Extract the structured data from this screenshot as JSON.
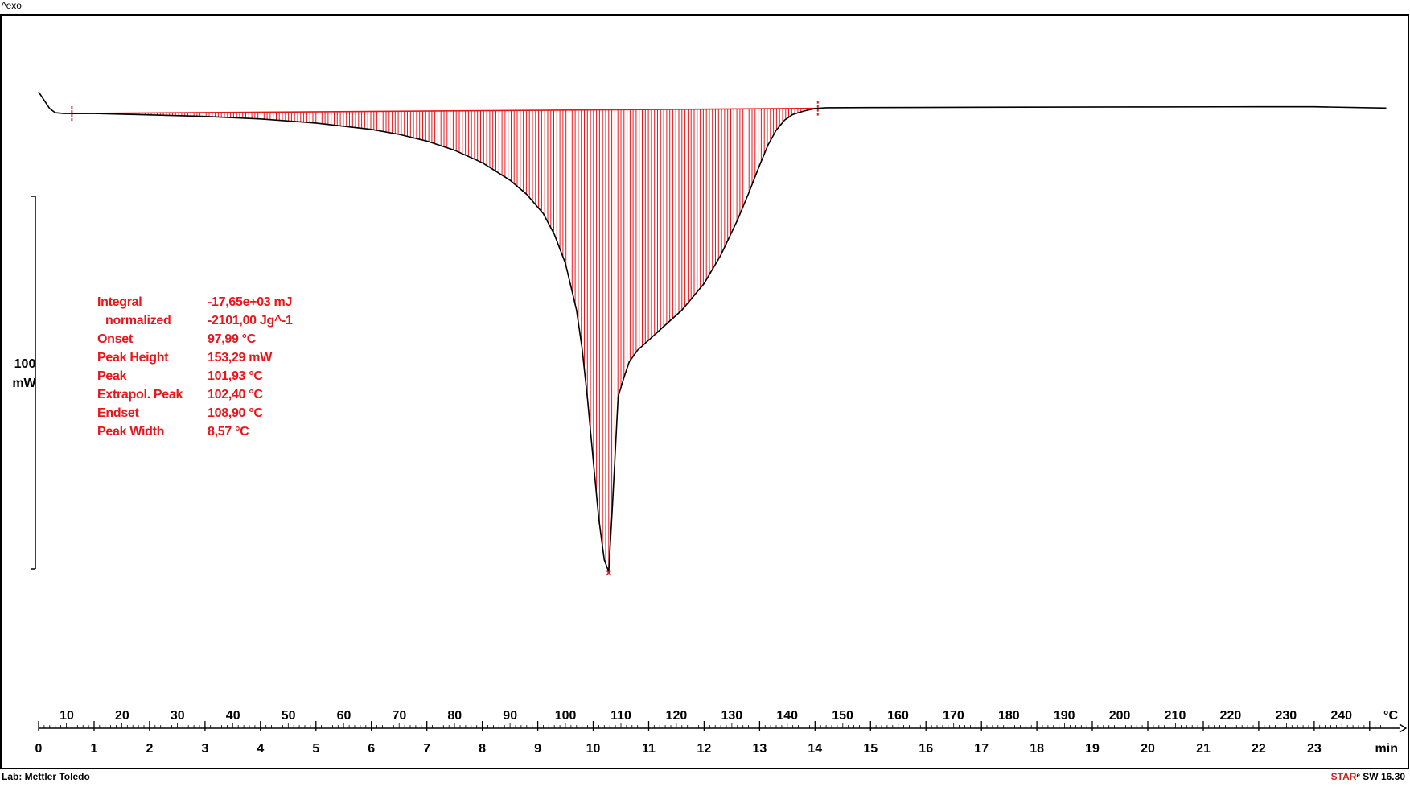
{
  "header": {
    "exo_label": "^exo"
  },
  "footer": {
    "lab": "Lab: Mettler Toledo",
    "software_brand": "STAR",
    "software_version": "SW 16.30"
  },
  "scale_bar": {
    "value": "100",
    "unit": "mW"
  },
  "results": [
    {
      "label": "Integral",
      "value": "-17,65e+03 mJ"
    },
    {
      "label": "normalized",
      "value": "-2101,00 Jg^-1"
    },
    {
      "label": "Onset",
      "value": "97,99 °C"
    },
    {
      "label": "Peak Height",
      "value": "153,29 mW"
    },
    {
      "label": "Peak",
      "value": "101,93 °C"
    },
    {
      "label": "Extrapol. Peak",
      "value": "102,40 °C"
    },
    {
      "label": "Endset",
      "value": "108,90 °C"
    },
    {
      "label": "Peak Width",
      "value": "8,57 °C"
    }
  ],
  "chart_data": {
    "type": "line",
    "title": "",
    "x_axis_temperature": {
      "unit": "°C",
      "ticks": [
        10,
        20,
        30,
        40,
        50,
        60,
        70,
        80,
        90,
        100,
        110,
        120,
        130,
        140,
        150,
        160,
        170,
        180,
        190,
        200,
        210,
        220,
        230,
        240
      ]
    },
    "x_axis_time": {
      "unit": "min",
      "ticks": [
        0,
        1,
        2,
        3,
        4,
        5,
        6,
        7,
        8,
        9,
        10,
        11,
        12,
        13,
        14,
        15,
        16,
        17,
        18,
        19,
        20,
        21,
        22,
        23
      ],
      "xlim": [
        0,
        24.4
      ]
    },
    "scale_bar_mW": 100,
    "series": [
      {
        "x_min": [
          0,
          0.1,
          0.2,
          0.3,
          0.45,
          0.6,
          1,
          2,
          3,
          4,
          5,
          6,
          6.5,
          7,
          7.5,
          8,
          8.5,
          8.8,
          9.1,
          9.3,
          9.5,
          9.7,
          9.8,
          9.9,
          10,
          10.1,
          10.2,
          10.28,
          10.35,
          10.45,
          10.55,
          10.65,
          10.8,
          11,
          11.3,
          11.6,
          12,
          12.3,
          12.6,
          12.8,
          13,
          13.15,
          13.3,
          13.45,
          13.6,
          13.8,
          14,
          14.2,
          15,
          17,
          20,
          22,
          23,
          24.3
        ],
        "y_mW": [
          11,
          6,
          1,
          -1.5,
          -2,
          -2,
          -2,
          -2.8,
          -3.7,
          -5.2,
          -7.7,
          -11.5,
          -14.5,
          -18.5,
          -24,
          -31.5,
          -42,
          -50.5,
          -62,
          -74.5,
          -92,
          -120,
          -143,
          -174,
          -210,
          -245,
          -270,
          -277,
          -236,
          -172,
          -161,
          -151,
          -144,
          -138,
          -129,
          -120,
          -104,
          -87,
          -66,
          -50,
          -33,
          -21,
          -12,
          -6,
          -2.5,
          -0.5,
          1,
          1.5,
          1.6,
          1.8,
          2,
          2.1,
          2.1,
          1.3
        ]
      }
    ],
    "integration": {
      "start_min": 0.6,
      "end_min": 14.05,
      "peak_min": 10.28
    },
    "colors": {
      "curve": "#000000",
      "fill": "#e8161b",
      "axis": "#000000"
    }
  }
}
